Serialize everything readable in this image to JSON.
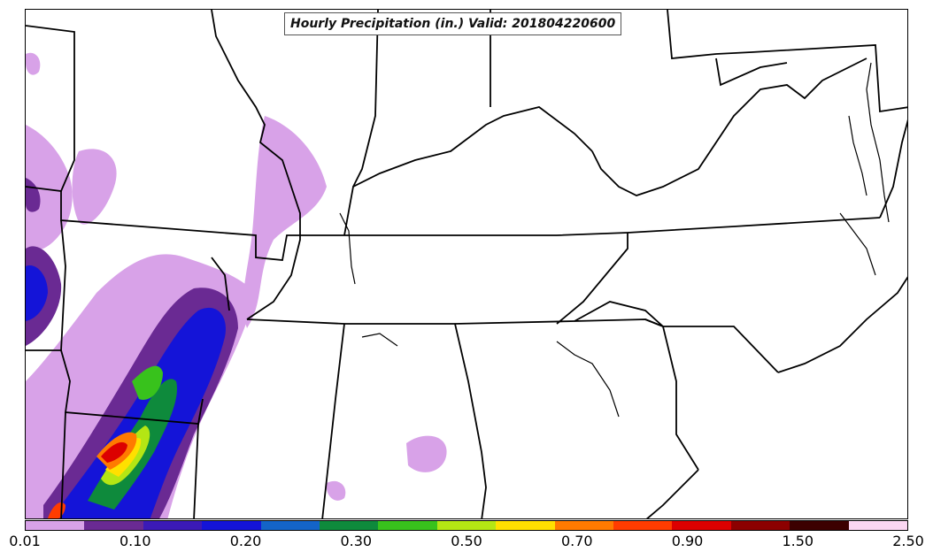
{
  "title": "Hourly Precipitation (in.) Valid: 201804220600",
  "colorbar": {
    "tick_labels": [
      "0.01",
      "0.10",
      "0.20",
      "0.30",
      "0.50",
      "0.70",
      "0.90",
      "1.50",
      "2.50"
    ],
    "colors": [
      "#d8a2e8",
      "#6a2a93",
      "#3b1ab7",
      "#1414d8",
      "#1464c8",
      "#0e8a3c",
      "#38c21c",
      "#b4e614",
      "#ffe000",
      "#ff7a00",
      "#ff3c00",
      "#dc0000",
      "#8c0000",
      "#3c0000",
      "#fbd6f2"
    ]
  },
  "map_layers": {
    "boundaries": "us-state-boundaries",
    "precip_field": "hourly-precipitation-shading"
  }
}
